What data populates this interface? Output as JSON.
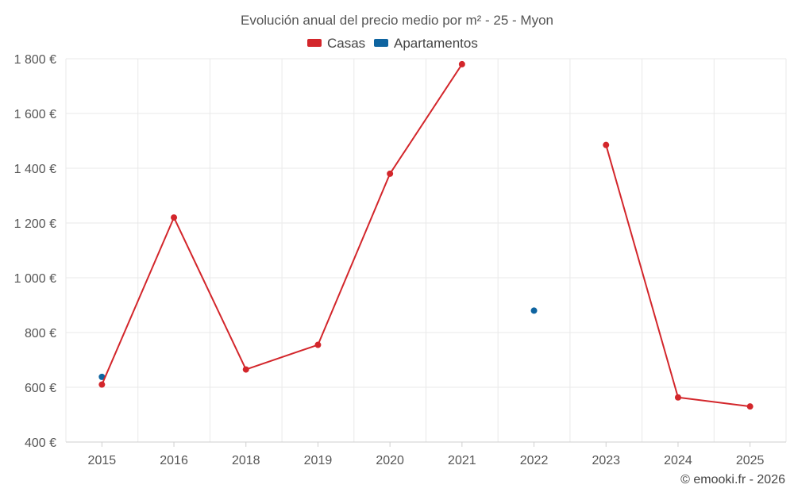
{
  "chart_data": {
    "type": "line",
    "title": "Evolución anual del precio medio por m² - 25 - Myon",
    "categories": [
      "2015",
      "2016",
      "2018",
      "2019",
      "2020",
      "2021",
      "2022",
      "2023",
      "2024",
      "2025"
    ],
    "ylim": [
      400,
      1800
    ],
    "yticks": [
      400,
      600,
      800,
      1000,
      1200,
      1400,
      1600,
      1800
    ],
    "ytick_labels": [
      "400 €",
      "600 €",
      "800 €",
      "1 000 €",
      "1 200 €",
      "1 400 €",
      "1 600 €",
      "1 800 €"
    ],
    "grid": true,
    "legend_position": "top-center",
    "series": [
      {
        "name": "Casas",
        "color": "#d3262b",
        "values": [
          610,
          1220,
          665,
          755,
          1380,
          1780,
          null,
          1485,
          563,
          530
        ]
      },
      {
        "name": "Apartamentos",
        "color": "#0e64a0",
        "values": [
          638,
          null,
          null,
          null,
          null,
          null,
          880,
          null,
          null,
          null
        ]
      }
    ],
    "credit": "© emooki.fr - 2026"
  }
}
